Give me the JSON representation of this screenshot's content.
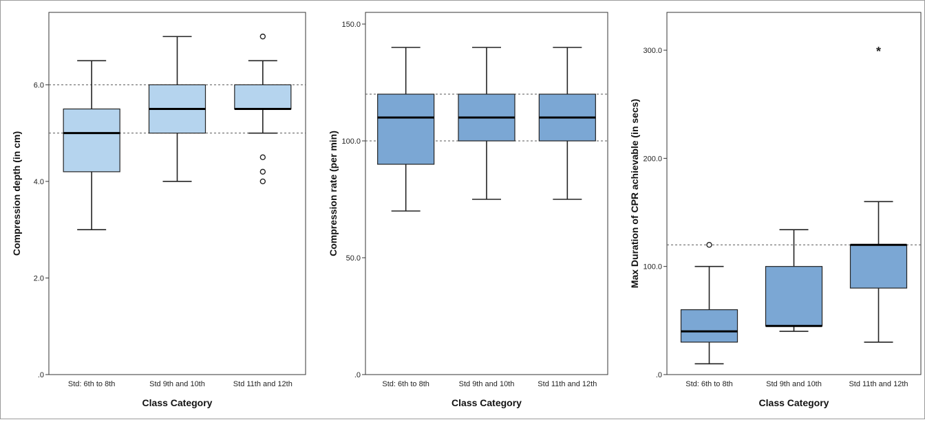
{
  "chart_data": [
    {
      "type": "boxplot",
      "xlabel": "Class Category",
      "ylabel": "Compression depth (in cm)",
      "ylim": [
        0,
        7.5
      ],
      "yticks": [
        0,
        2,
        4,
        6
      ],
      "ytick_labels": [
        ".0",
        "2.0",
        "4.0",
        "6.0"
      ],
      "reference_lines": [
        5,
        6
      ],
      "box_color": "#b5d4ee",
      "categories": [
        "Std: 6th to 8th",
        "Std 9th and 10th",
        "Std 11th and 12th"
      ],
      "boxes": [
        {
          "whisker_low": 3.0,
          "q1": 4.2,
          "median": 5.0,
          "q3": 5.5,
          "whisker_high": 6.5,
          "outliers": [],
          "extremes": []
        },
        {
          "whisker_low": 4.0,
          "q1": 5.0,
          "median": 5.5,
          "q3": 6.0,
          "whisker_high": 7.0,
          "outliers": [],
          "extremes": []
        },
        {
          "whisker_low": 5.0,
          "q1": 5.5,
          "median": 5.5,
          "q3": 6.0,
          "whisker_high": 6.5,
          "outliers": [
            7.0,
            4.5,
            4.2,
            4.0
          ],
          "extremes": []
        }
      ]
    },
    {
      "type": "boxplot",
      "xlabel": "Class Category",
      "ylabel": "Compression rate (per min)",
      "ylim": [
        0,
        155
      ],
      "yticks": [
        0,
        50,
        100,
        150
      ],
      "ytick_labels": [
        ".0",
        "50.0",
        "100.0",
        "150.0"
      ],
      "reference_lines": [
        100,
        120
      ],
      "box_color": "#7ba7d4",
      "categories": [
        "Std: 6th to 8th",
        "Std 9th and 10th",
        "Std 11th and 12th"
      ],
      "boxes": [
        {
          "whisker_low": 70,
          "q1": 90,
          "median": 110,
          "q3": 120,
          "whisker_high": 140,
          "outliers": [],
          "extremes": []
        },
        {
          "whisker_low": 75,
          "q1": 100,
          "median": 110,
          "q3": 120,
          "whisker_high": 140,
          "outliers": [],
          "extremes": []
        },
        {
          "whisker_low": 75,
          "q1": 100,
          "median": 110,
          "q3": 120,
          "whisker_high": 140,
          "outliers": [],
          "extremes": []
        }
      ]
    },
    {
      "type": "boxplot",
      "xlabel": "Class Category",
      "ylabel": "Max Duration of CPR achievable (in secs)",
      "ylim": [
        0,
        335
      ],
      "yticks": [
        0,
        100,
        200,
        300
      ],
      "ytick_labels": [
        ".0",
        "100.0",
        "200.0",
        "300.0"
      ],
      "reference_lines": [
        120
      ],
      "box_color": "#7ba7d4",
      "categories": [
        "Std: 6th to 8th",
        "Std 9th and 10th",
        "Std 11th and 12th"
      ],
      "boxes": [
        {
          "whisker_low": 10,
          "q1": 30,
          "median": 40,
          "q3": 60,
          "whisker_high": 100,
          "outliers": [
            120
          ],
          "extremes": []
        },
        {
          "whisker_low": 40,
          "q1": 45,
          "median": 45,
          "q3": 100,
          "whisker_high": 134,
          "outliers": [],
          "extremes": []
        },
        {
          "whisker_low": 30,
          "q1": 80,
          "median": 120,
          "q3": 120,
          "whisker_high": 160,
          "outliers": [],
          "extremes": [
            300
          ]
        }
      ]
    }
  ]
}
